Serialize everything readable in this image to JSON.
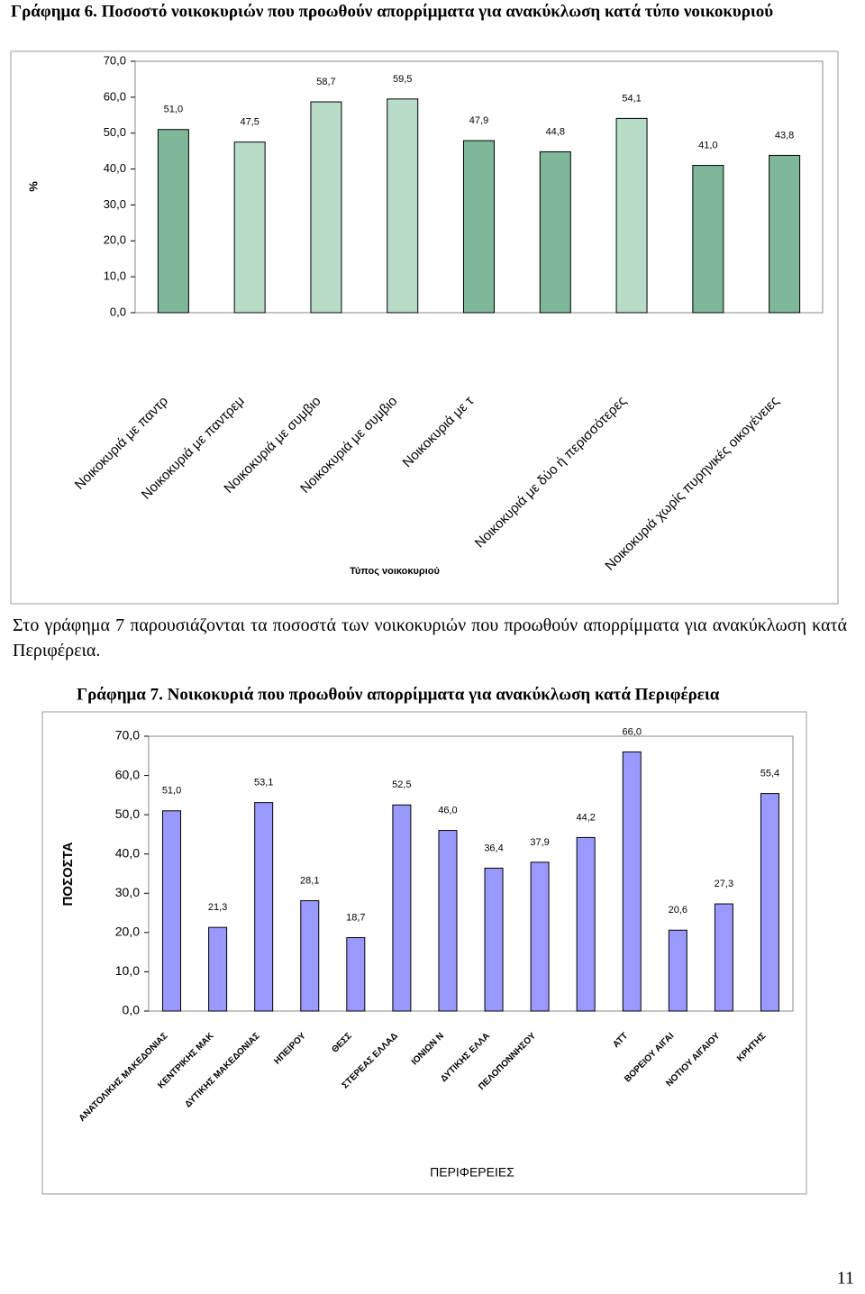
{
  "chart_data": [
    {
      "type": "bar",
      "title": "Γράφημα 6. Ποσοστό νοικοκυριών που προωθούν απορρίμματα για ανακύκλωση κατά τύπο νοικοκυριού",
      "y_label": "%",
      "x_label": "Τύπος νοικοκυριού",
      "categories": [
        "Νοικοκυριά με παντρ",
        "Νοικοκυριά με παντρεμ",
        "Νοικοκυριά με συμβιο",
        "Νοικοκυριά με συμβιο",
        "Νοικοκυριά με τ",
        null,
        "Νοικοκυριά με δύο ή περισσότερες",
        null,
        "Νοικοκυριά χωρίς πυρηνικές οικογένειες"
      ],
      "values": [
        51.0,
        47.5,
        58.7,
        59.5,
        47.9,
        44.8,
        54.1,
        41.0,
        43.8
      ],
      "value_labels": [
        "51,0",
        "47,5",
        "58,7",
        "59,5",
        "47,9",
        "44,8",
        "54,1",
        "41,0",
        "43,8"
      ],
      "colors": [
        "#7fb898",
        "#b9dcc9",
        "#b9dcc9",
        "#b9dcc9",
        "#7fb898",
        "#7fb898",
        "#b9dcc9",
        "#7fb898",
        "#7fb898"
      ],
      "ylim": [
        0,
        70
      ],
      "yticks": [
        {
          "value": 0,
          "label": "0,0"
        },
        {
          "value": 10,
          "label": "10,0"
        },
        {
          "value": 20,
          "label": "20,0"
        },
        {
          "value": 30,
          "label": "30,0"
        },
        {
          "value": 40,
          "label": "40,0"
        },
        {
          "value": 50,
          "label": "50,0"
        },
        {
          "value": 60,
          "label": "60,0"
        },
        {
          "value": 70,
          "label": "70,0"
        }
      ],
      "grid": false
    },
    {
      "type": "bar",
      "title": "Γράφημα 7. Νοικοκυριά που προωθούν απορρίμματα για ανακύκλωση κατά Περιφέρεια",
      "y_label": "ΠΟΣΟΣΤΑ",
      "x_label": "ΠΕΡΙΦΕΡΕΙΕΣ",
      "categories": [
        "ΑΝΑΤΟΛΙΚΗΣ ΜΑΚΕΔΟΝΙΑΣ",
        "ΚΕΝΤΡΙΚΗΣ ΜΑΚ",
        "ΔΥΤΙΚΗΣ ΜΑΚΕΔΟΝΙΑΣ",
        "ΗΠΕΙΡΟΥ",
        "ΘΕΣΣ",
        "ΣΤΕΡΕΑΣ ΕΛΛΑΔ",
        "ΙΟΝΙΩΝ Ν",
        "ΔΥΤΙΚΗΣ ΕΛΛΑ",
        "ΠΕΛΟΠΟΝΝΗΣΟΥ",
        null,
        "ΑΤΤ",
        "ΒΟΡΕΙΟΥ ΑΙΓΑΙ",
        "ΝΟΤΙΟΥ ΑΙΓΑΙΟΥ",
        "ΚΡΗΤΗΣ"
      ],
      "values": [
        51.0,
        21.3,
        53.1,
        28.1,
        18.7,
        52.5,
        46.0,
        36.4,
        37.9,
        44.2,
        66.0,
        20.6,
        27.3,
        55.4
      ],
      "value_labels": [
        "51,0",
        "21,3",
        "53,1",
        "28,1",
        "18,7",
        "52,5",
        "46,0",
        "36,4",
        "37,9",
        "44,2",
        "66,0",
        "20,6",
        "27,3",
        "55,4"
      ],
      "color": "#9999ff",
      "ylim": [
        0,
        70
      ],
      "yticks": [
        {
          "value": 0,
          "label": "0,0"
        },
        {
          "value": 10,
          "label": "10,0"
        },
        {
          "value": 20,
          "label": "20,0"
        },
        {
          "value": 30,
          "label": "30,0"
        },
        {
          "value": 40,
          "label": "40,0"
        },
        {
          "value": 50,
          "label": "50,0"
        },
        {
          "value": 60,
          "label": "60,0"
        },
        {
          "value": 70,
          "label": "70,0"
        }
      ],
      "grid": false
    }
  ],
  "paragraph": "Στο γράφημα 7 παρουσιάζονται τα ποσοστά των νοικοκυριών που προωθούν απορρίμματα για ανακύκλωση κατά Περιφέρεια.",
  "page_number": "11"
}
